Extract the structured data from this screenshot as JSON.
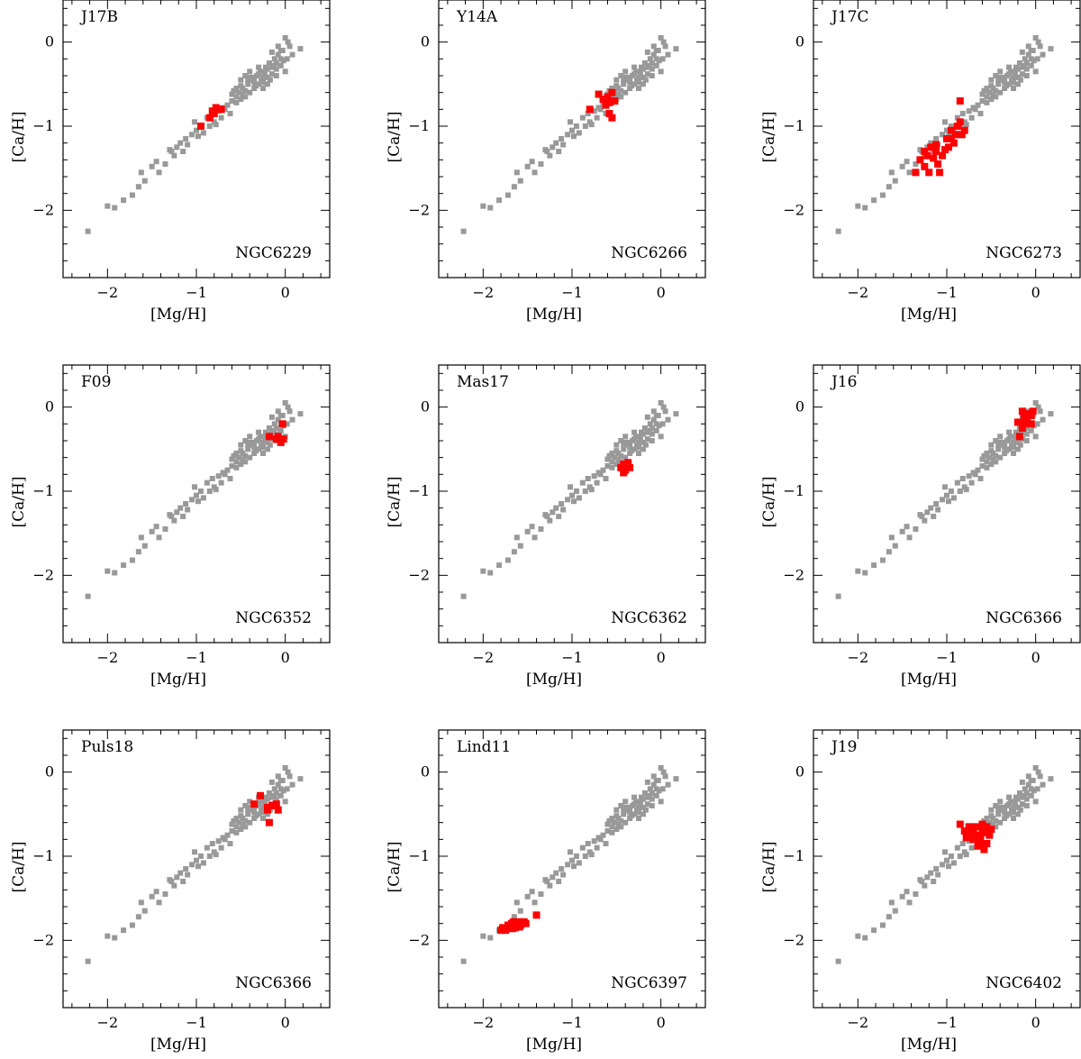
{
  "chart_data": {
    "type": "scatter",
    "xlabel": "[Mg/H]",
    "ylabel": "[Ca/H]",
    "xlim": [
      -2.5,
      0.5
    ],
    "ylim": [
      -2.8,
      0.5
    ],
    "xticks_major": [
      -2,
      -1,
      0
    ],
    "xtick_labels": [
      "−2",
      "−1",
      "0"
    ],
    "yticks_major": [
      -2,
      -1,
      0
    ],
    "ytick_labels": [
      "−2",
      "−1",
      "0"
    ],
    "colors": {
      "reference": "#999999",
      "highlight": "#ff0000"
    },
    "reference": [
      [
        -2.22,
        -2.25
      ],
      [
        -2.0,
        -1.95
      ],
      [
        -1.92,
        -1.97
      ],
      [
        -1.82,
        -1.88
      ],
      [
        -1.72,
        -1.82
      ],
      [
        -1.65,
        -1.72
      ],
      [
        -1.62,
        -1.55
      ],
      [
        -1.58,
        -1.65
      ],
      [
        -1.5,
        -1.48
      ],
      [
        -1.45,
        -1.42
      ],
      [
        -1.42,
        -1.55
      ],
      [
        -1.35,
        -1.45
      ],
      [
        -1.3,
        -1.28
      ],
      [
        -1.25,
        -1.35
      ],
      [
        -1.22,
        -1.25
      ],
      [
        -1.18,
        -1.2
      ],
      [
        -1.15,
        -1.3
      ],
      [
        -1.12,
        -1.15
      ],
      [
        -1.05,
        -1.1
      ],
      [
        -1.02,
        -0.95
      ],
      [
        -1.0,
        -1.05
      ],
      [
        -0.95,
        -1.0
      ],
      [
        -0.92,
        -1.08
      ],
      [
        -0.88,
        -0.9
      ],
      [
        -0.85,
        -1.0
      ],
      [
        -0.82,
        -0.85
      ],
      [
        -0.8,
        -0.95
      ],
      [
        -0.75,
        -0.82
      ],
      [
        -0.72,
        -0.9
      ],
      [
        -0.7,
        -0.78
      ],
      [
        -0.65,
        -0.75
      ],
      [
        -0.62,
        -0.85
      ],
      [
        -0.6,
        -0.7
      ],
      [
        -0.55,
        -0.72
      ],
      [
        -0.52,
        -0.6
      ],
      [
        -0.5,
        -0.68
      ],
      [
        -0.48,
        -0.55
      ],
      [
        -0.45,
        -0.65
      ],
      [
        -0.42,
        -0.5
      ],
      [
        -0.4,
        -0.6
      ],
      [
        -0.38,
        -0.45
      ],
      [
        -0.35,
        -0.55
      ],
      [
        -0.32,
        -0.4
      ],
      [
        -0.3,
        -0.5
      ],
      [
        -0.28,
        -0.35
      ],
      [
        -0.25,
        -0.48
      ],
      [
        -0.22,
        -0.3
      ],
      [
        -0.2,
        -0.42
      ],
      [
        -0.18,
        -0.25
      ],
      [
        -0.15,
        -0.38
      ],
      [
        -0.12,
        -0.2
      ],
      [
        -0.1,
        -0.32
      ],
      [
        -0.08,
        -0.15
      ],
      [
        -0.05,
        -0.28
      ],
      [
        -0.03,
        -0.1
      ],
      [
        0.0,
        0.05
      ],
      [
        0.02,
        -0.2
      ],
      [
        0.05,
        -0.05
      ],
      [
        0.08,
        -0.15
      ],
      [
        0.17,
        -0.08
      ],
      [
        -0.6,
        -0.62
      ],
      [
        -0.55,
        -0.65
      ],
      [
        -0.5,
        -0.52
      ],
      [
        -0.45,
        -0.58
      ],
      [
        -0.4,
        -0.42
      ],
      [
        -0.35,
        -0.48
      ],
      [
        -0.3,
        -0.38
      ],
      [
        -0.25,
        -0.42
      ],
      [
        -0.2,
        -0.32
      ],
      [
        -0.15,
        -0.3
      ],
      [
        -0.1,
        -0.25
      ],
      [
        -0.05,
        -0.2
      ],
      [
        -0.58,
        -0.58
      ],
      [
        -0.48,
        -0.62
      ],
      [
        -0.42,
        -0.45
      ],
      [
        -0.33,
        -0.52
      ],
      [
        -0.27,
        -0.45
      ],
      [
        -0.23,
        -0.36
      ],
      [
        -0.17,
        -0.45
      ],
      [
        -0.13,
        -0.28
      ],
      [
        -1.1,
        -1.22
      ],
      [
        -0.98,
        -1.12
      ],
      [
        -0.78,
        -0.98
      ],
      [
        -0.68,
        -0.8
      ],
      [
        -1.28,
        -1.3
      ],
      [
        -0.4,
        -0.35
      ],
      [
        -0.3,
        -0.3
      ],
      [
        -0.2,
        -0.5
      ],
      [
        -0.1,
        -0.4
      ],
      [
        0.0,
        -0.35
      ],
      [
        -0.5,
        -0.45
      ],
      [
        -0.45,
        -0.4
      ],
      [
        -0.55,
        -0.55
      ],
      [
        -0.35,
        -0.42
      ],
      [
        -0.25,
        -0.55
      ],
      [
        -0.05,
        -0.1
      ],
      [
        0.03,
        0.0
      ],
      [
        -0.15,
        -0.12
      ],
      [
        -0.08,
        -0.05
      ],
      [
        -0.02,
        -0.22
      ]
    ],
    "panels": [
      {
        "label": "J17B",
        "cluster": "NGC6229",
        "points": [
          [
            -0.95,
            -1.0
          ],
          [
            -0.85,
            -0.9
          ],
          [
            -0.8,
            -0.85
          ],
          [
            -0.78,
            -0.78
          ],
          [
            -0.72,
            -0.8
          ],
          [
            -0.82,
            -0.82
          ],
          [
            -0.75,
            -0.8
          ]
        ]
      },
      {
        "label": "Y14A",
        "cluster": "NGC6266",
        "points": [
          [
            -0.8,
            -0.8
          ],
          [
            -0.7,
            -0.62
          ],
          [
            -0.65,
            -0.68
          ],
          [
            -0.6,
            -0.65
          ],
          [
            -0.55,
            -0.6
          ],
          [
            -0.52,
            -0.7
          ],
          [
            -0.58,
            -0.85
          ],
          [
            -0.55,
            -0.9
          ],
          [
            -0.62,
            -0.75
          ],
          [
            -0.58,
            -0.72
          ]
        ]
      },
      {
        "label": "J17C",
        "cluster": "NGC6273",
        "points": [
          [
            -1.35,
            -1.55
          ],
          [
            -1.3,
            -1.4
          ],
          [
            -1.25,
            -1.48
          ],
          [
            -1.22,
            -1.35
          ],
          [
            -1.2,
            -1.55
          ],
          [
            -1.18,
            -1.25
          ],
          [
            -1.15,
            -1.38
          ],
          [
            -1.12,
            -1.22
          ],
          [
            -1.1,
            -1.45
          ],
          [
            -1.08,
            -1.55
          ],
          [
            -1.05,
            -1.35
          ],
          [
            -1.02,
            -1.28
          ],
          [
            -1.0,
            -1.15
          ],
          [
            -0.98,
            -1.25
          ],
          [
            -0.95,
            -1.05
          ],
          [
            -0.92,
            -1.2
          ],
          [
            -0.9,
            -1.1
          ],
          [
            -0.88,
            -1.0
          ],
          [
            -0.85,
            -0.95
          ],
          [
            -0.83,
            -1.1
          ],
          [
            -0.8,
            -1.05
          ],
          [
            -0.85,
            -0.7
          ],
          [
            -1.12,
            -1.3
          ],
          [
            -1.25,
            -1.3
          ],
          [
            -0.95,
            -1.15
          ]
        ]
      },
      {
        "label": "F09",
        "cluster": "NGC6352",
        "points": [
          [
            -0.18,
            -0.35
          ],
          [
            -0.1,
            -0.38
          ],
          [
            -0.05,
            -0.42
          ],
          [
            -0.03,
            -0.2
          ],
          [
            -0.02,
            -0.38
          ],
          [
            -0.08,
            -0.35
          ]
        ]
      },
      {
        "label": "Mas17",
        "cluster": "NGC6362",
        "points": [
          [
            -0.45,
            -0.72
          ],
          [
            -0.42,
            -0.68
          ],
          [
            -0.4,
            -0.75
          ],
          [
            -0.38,
            -0.7
          ],
          [
            -0.35,
            -0.72
          ],
          [
            -0.42,
            -0.78
          ],
          [
            -0.37,
            -0.66
          ]
        ]
      },
      {
        "label": "J16",
        "cluster": "NGC6366",
        "points": [
          [
            -0.15,
            -0.05
          ],
          [
            -0.12,
            -0.2
          ],
          [
            -0.1,
            -0.15
          ],
          [
            -0.08,
            -0.1
          ],
          [
            -0.05,
            -0.2
          ],
          [
            -0.03,
            -0.05
          ],
          [
            -0.18,
            -0.35
          ],
          [
            -0.15,
            -0.25
          ],
          [
            -0.2,
            -0.18
          ],
          [
            -0.1,
            -0.08
          ],
          [
            -0.05,
            -0.1
          ],
          [
            -0.13,
            -0.12
          ]
        ]
      },
      {
        "label": "Puls18",
        "cluster": "NGC6366",
        "points": [
          [
            -0.35,
            -0.38
          ],
          [
            -0.28,
            -0.28
          ],
          [
            -0.2,
            -0.45
          ],
          [
            -0.18,
            -0.6
          ],
          [
            -0.15,
            -0.4
          ],
          [
            -0.1,
            -0.38
          ],
          [
            -0.08,
            -0.45
          ],
          [
            -0.2,
            -0.42
          ]
        ]
      },
      {
        "label": "Lind11",
        "cluster": "NGC6397",
        "points": [
          [
            -1.8,
            -1.88
          ],
          [
            -1.78,
            -1.85
          ],
          [
            -1.75,
            -1.88
          ],
          [
            -1.72,
            -1.82
          ],
          [
            -1.7,
            -1.85
          ],
          [
            -1.68,
            -1.8
          ],
          [
            -1.66,
            -1.78
          ],
          [
            -1.64,
            -1.85
          ],
          [
            -1.62,
            -1.82
          ],
          [
            -1.6,
            -1.78
          ],
          [
            -1.58,
            -1.82
          ],
          [
            -1.56,
            -1.8
          ],
          [
            -1.54,
            -1.78
          ],
          [
            -1.52,
            -1.8
          ],
          [
            -1.4,
            -1.7
          ],
          [
            -1.74,
            -1.86
          ],
          [
            -1.67,
            -1.86
          ],
          [
            -1.59,
            -1.84
          ]
        ]
      },
      {
        "label": "J19",
        "cluster": "NGC6402",
        "points": [
          [
            -0.85,
            -0.62
          ],
          [
            -0.8,
            -0.7
          ],
          [
            -0.75,
            -0.65
          ],
          [
            -0.72,
            -0.72
          ],
          [
            -0.7,
            -0.8
          ],
          [
            -0.68,
            -0.65
          ],
          [
            -0.65,
            -0.75
          ],
          [
            -0.62,
            -0.85
          ],
          [
            -0.6,
            -0.7
          ],
          [
            -0.58,
            -0.92
          ],
          [
            -0.55,
            -0.65
          ],
          [
            -0.52,
            -0.75
          ],
          [
            -0.5,
            -0.68
          ],
          [
            -0.55,
            -0.85
          ],
          [
            -0.6,
            -0.62
          ],
          [
            -0.65,
            -0.88
          ],
          [
            -0.7,
            -0.72
          ],
          [
            -0.78,
            -0.78
          ],
          [
            -0.62,
            -0.78
          ],
          [
            -0.57,
            -0.72
          ],
          [
            -0.67,
            -0.8
          ],
          [
            -0.73,
            -0.66
          ]
        ]
      }
    ]
  }
}
